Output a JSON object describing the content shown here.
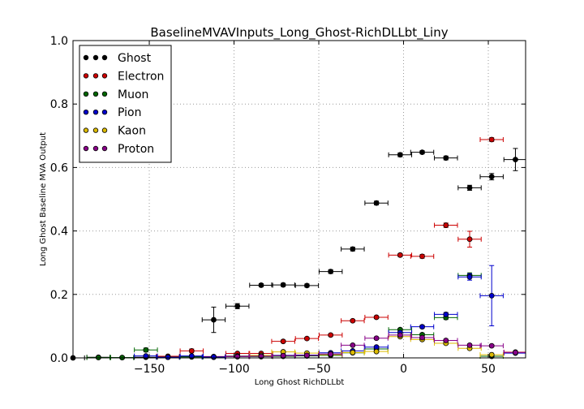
{
  "chart_data": {
    "type": "scatter",
    "title": "BaselineMVAVInputs_Long_Ghost-RichDLLbt_Liny",
    "xlabel": "Long Ghost RichDLLbt",
    "ylabel": "Long Ghost Baseline MVA Output",
    "xlim": [
      -195,
      72
    ],
    "ylim": [
      0.0,
      1.0
    ],
    "xticks": [
      -150,
      -100,
      -50,
      0,
      50
    ],
    "yticks": [
      0.0,
      0.2,
      0.4,
      0.6,
      0.8,
      1.0
    ],
    "xtick_labels": [
      "−150",
      "−100",
      "−50",
      "0",
      "50"
    ],
    "ytick_labels": [
      "0.0",
      "0.2",
      "0.4",
      "0.6",
      "0.8",
      "1.0"
    ],
    "bin_half_width": 6.8,
    "grid": true,
    "legend_position": "top-left",
    "series": [
      {
        "name": "Ghost",
        "color": "#000000",
        "x": [
          -195,
          -180,
          -166,
          -152,
          -139,
          -125,
          -112,
          -98,
          -84,
          -71,
          -57,
          -43,
          -30,
          -16,
          -2,
          11,
          25,
          39,
          52,
          66
        ],
        "y": [
          0.0,
          0.002,
          0.001,
          0.002,
          0.003,
          0.004,
          0.12,
          0.163,
          0.229,
          0.23,
          0.228,
          0.272,
          0.343,
          0.488,
          0.64,
          0.648,
          0.63,
          0.536,
          0.571,
          0.625
        ],
        "err": [
          0,
          0,
          0,
          0,
          0,
          0,
          0.04,
          0.008,
          0.005,
          0.005,
          0.005,
          0.006,
          0.006,
          0.006,
          0.006,
          0.005,
          0.006,
          0.008,
          0.01,
          0.035
        ]
      },
      {
        "name": "Electron",
        "color": "#cc0000",
        "x": [
          -139,
          -125,
          -112,
          -98,
          -84,
          -71,
          -57,
          -43,
          -30,
          -16,
          -2,
          11,
          25,
          39,
          52,
          66
        ],
        "y": [
          0.005,
          0.022,
          0.004,
          0.014,
          0.014,
          0.052,
          0.061,
          0.072,
          0.117,
          0.128,
          0.324,
          0.32,
          0.418,
          0.374,
          0.688,
          0.018
        ],
        "err": [
          0,
          0.006,
          0,
          0.003,
          0.003,
          0.004,
          0.004,
          0.004,
          0.004,
          0.004,
          0.005,
          0.006,
          0.007,
          0.025,
          0.006,
          0
        ]
      },
      {
        "name": "Muon",
        "color": "#006600",
        "x": [
          -180,
          -166,
          -152,
          -139,
          -125,
          -112,
          -98,
          -84,
          -71,
          -57,
          -43,
          -30,
          -16,
          -2,
          11,
          25,
          39,
          52
        ],
        "y": [
          0.001,
          0.001,
          0.025,
          0.002,
          0.003,
          0.002,
          0.004,
          0.004,
          0.005,
          0.006,
          0.008,
          0.016,
          0.028,
          0.089,
          0.073,
          0.127,
          0.26,
          0.005
        ],
        "err": [
          0,
          0,
          0.006,
          0,
          0,
          0,
          0,
          0,
          0,
          0,
          0,
          0.002,
          0.003,
          0.004,
          0.005,
          0.006,
          0.008,
          0
        ]
      },
      {
        "name": "Pion",
        "color": "#0000cc",
        "x": [
          -152,
          -139,
          -125,
          -112,
          -98,
          -84,
          -71,
          -57,
          -43,
          -30,
          -16,
          -2,
          11,
          25,
          39,
          52,
          66
        ],
        "y": [
          0.006,
          0.002,
          0.006,
          0.003,
          0.006,
          0.006,
          0.008,
          0.009,
          0.016,
          0.022,
          0.034,
          0.08,
          0.098,
          0.137,
          0.255,
          0.196,
          0.015
        ],
        "err": [
          0.002,
          0,
          0,
          0,
          0,
          0,
          0,
          0,
          0.002,
          0.002,
          0.003,
          0.004,
          0.005,
          0.006,
          0.01,
          0.095,
          0
        ]
      },
      {
        "name": "Kaon",
        "color": "#ddbb00",
        "x": [
          -98,
          -84,
          -71,
          -57,
          -43,
          -30,
          -16,
          -2,
          11,
          25,
          39,
          52
        ],
        "y": [
          0.005,
          0.008,
          0.019,
          0.015,
          0.01,
          0.017,
          0.02,
          0.067,
          0.058,
          0.046,
          0.03,
          0.01
        ],
        "err": [
          0,
          0,
          0.002,
          0.002,
          0,
          0.002,
          0.002,
          0.004,
          0.004,
          0.004,
          0.004,
          0
        ]
      },
      {
        "name": "Proton",
        "color": "#880088",
        "x": [
          -98,
          -84,
          -71,
          -57,
          -43,
          -30,
          -16,
          -2,
          11,
          25,
          39,
          52,
          66
        ],
        "y": [
          0.004,
          0.005,
          0.007,
          0.008,
          0.012,
          0.04,
          0.062,
          0.072,
          0.064,
          0.055,
          0.04,
          0.038,
          0.017
        ],
        "err": [
          0,
          0,
          0,
          0,
          0,
          0.003,
          0.004,
          0.004,
          0.004,
          0.004,
          0.004,
          0.004,
          0
        ]
      }
    ]
  }
}
